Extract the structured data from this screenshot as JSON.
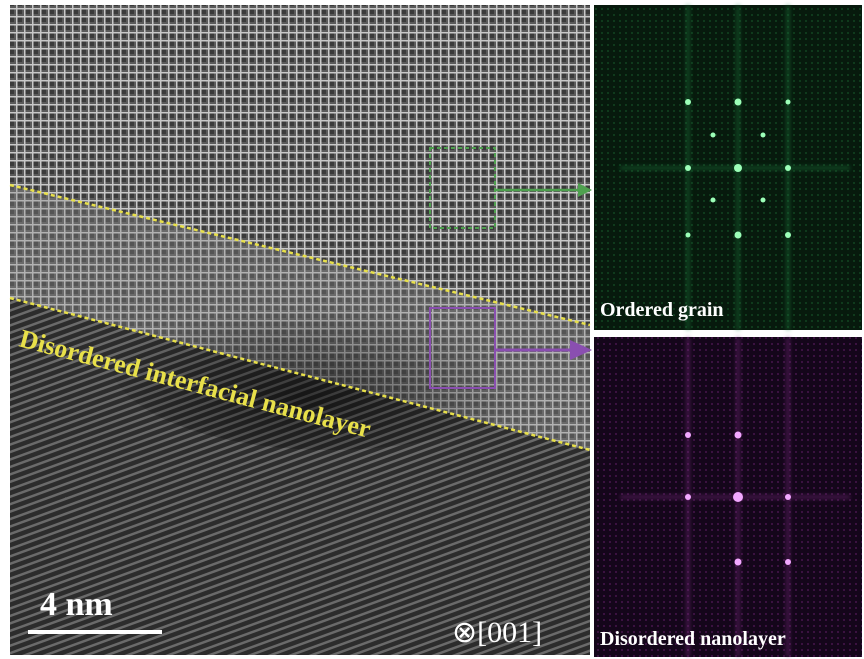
{
  "image": {
    "annotation": "Disordered interfacial nanolayer",
    "scale_bar": "4 nm",
    "zone_axis": "⊗[001]"
  },
  "panels": [
    {
      "label": "Ordered grain"
    },
    {
      "label": "Disordered nanolayer"
    }
  ]
}
